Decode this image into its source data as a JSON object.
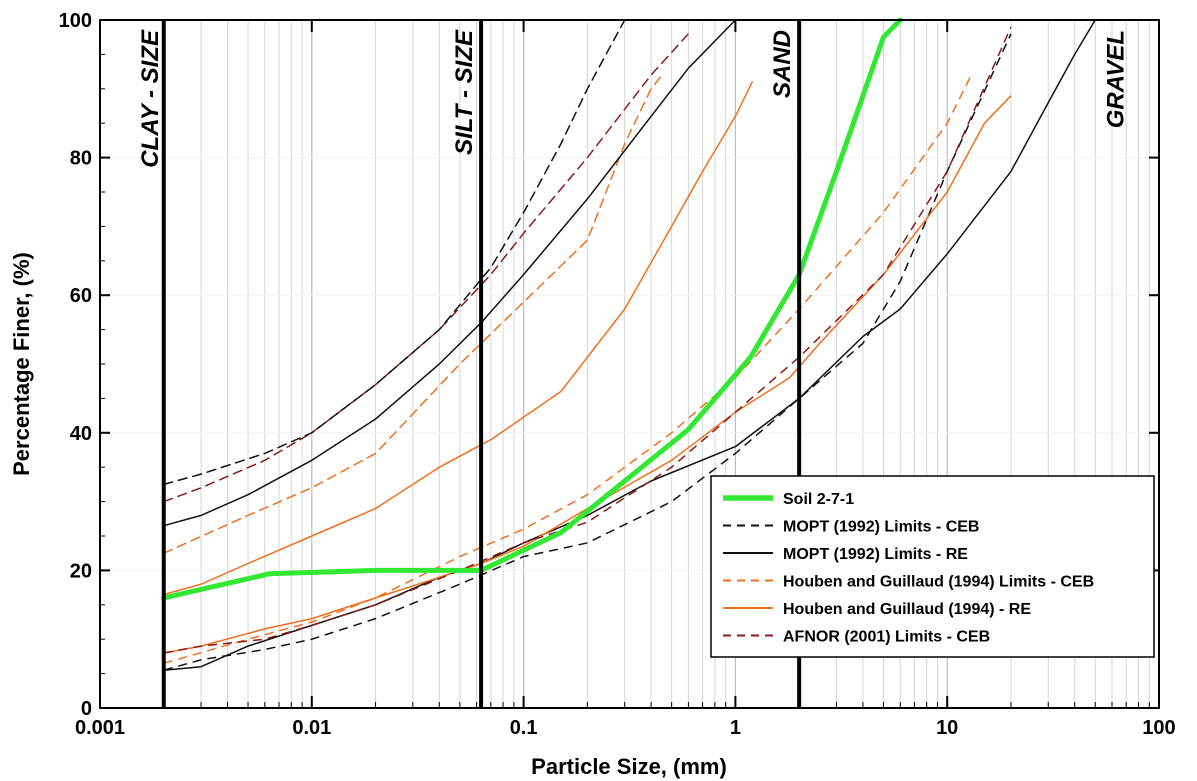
{
  "chart_data": {
    "type": "line",
    "xlabel": "Particle Size, (mm)",
    "ylabel": "Percentage Finer, (%)",
    "xscale": "log",
    "xlim": [
      0.001,
      100
    ],
    "ylim": [
      0,
      100
    ],
    "x_ticks": [
      {
        "value": 0.001,
        "label": "0.001"
      },
      {
        "value": 0.01,
        "label": "0.01"
      },
      {
        "value": 0.1,
        "label": "0.1"
      },
      {
        "value": 1,
        "label": "1"
      },
      {
        "value": 10,
        "label": "10"
      },
      {
        "value": 100,
        "label": "100"
      }
    ],
    "y_ticks": [
      {
        "value": 0,
        "label": "0"
      },
      {
        "value": 20,
        "label": "20"
      },
      {
        "value": 40,
        "label": "40"
      },
      {
        "value": 60,
        "label": "60"
      },
      {
        "value": 80,
        "label": "80"
      },
      {
        "value": 100,
        "label": "100"
      }
    ],
    "grid": "vertical minor log gridlines",
    "legend_position": "bottom-right",
    "boundaries": [
      {
        "x": 0.002,
        "label": "CLAY - SIZE",
        "side": "right"
      },
      {
        "x": 0.063,
        "label": "SILT - SIZE",
        "side": "left"
      },
      {
        "x": 2,
        "label": "SAND",
        "side": "left"
      },
      {
        "x": null,
        "label": "GRAVEL",
        "at": 75,
        "side": "left"
      }
    ],
    "series": [
      {
        "name": "Soil 2-7-1",
        "color": "#33e833",
        "dash": "solid",
        "width": 5,
        "points": [
          [
            0.002,
            16
          ],
          [
            0.0063,
            19.5
          ],
          [
            0.02,
            20
          ],
          [
            0.063,
            20
          ],
          [
            0.15,
            25.5
          ],
          [
            0.3,
            33
          ],
          [
            0.6,
            40.5
          ],
          [
            1.18,
            51
          ],
          [
            2,
            63
          ],
          [
            3,
            78
          ],
          [
            5,
            97.5
          ],
          [
            6,
            100
          ]
        ]
      },
      {
        "name": "MOPT (1992) Limits - CEB",
        "color": "#111111",
        "dash": "dashed",
        "width": 1.5,
        "points": [
          [
            0.002,
            32.5
          ],
          [
            0.003,
            34
          ],
          [
            0.006,
            37
          ],
          [
            0.01,
            40
          ],
          [
            0.02,
            47
          ],
          [
            0.04,
            55
          ],
          [
            0.07,
            64
          ],
          [
            0.1,
            72
          ],
          [
            0.15,
            82
          ],
          [
            0.2,
            90
          ],
          [
            0.3,
            100
          ]
        ]
      },
      {
        "name": "MOPT (1992) Limits - RE",
        "color": "#111111",
        "dash": "solid",
        "width": 1.5,
        "points": [
          [
            0.002,
            26.5
          ],
          [
            0.003,
            28
          ],
          [
            0.005,
            31
          ],
          [
            0.01,
            36
          ],
          [
            0.02,
            42
          ],
          [
            0.04,
            50
          ],
          [
            0.063,
            56
          ],
          [
            0.1,
            63
          ],
          [
            0.2,
            74
          ],
          [
            0.4,
            86
          ],
          [
            0.6,
            93
          ],
          [
            1,
            100
          ]
        ]
      },
      {
        "name": "Houben and Guillaud (1994) Limits - CEB",
        "color": "#f07020",
        "dash": "dashed",
        "width": 1.5,
        "points": [
          [
            0.002,
            22.5
          ],
          [
            0.005,
            28
          ],
          [
            0.01,
            32
          ],
          [
            0.02,
            37
          ],
          [
            0.05,
            50
          ],
          [
            0.1,
            59
          ],
          [
            0.2,
            68
          ],
          [
            0.3,
            82
          ],
          [
            0.4,
            90
          ],
          [
            0.45,
            92
          ]
        ]
      },
      {
        "name": "Houben and Guillaud (1994) - RE",
        "color": "#f07020",
        "dash": "solid",
        "width": 1.5,
        "points": [
          [
            0.002,
            16.5
          ],
          [
            0.003,
            18
          ],
          [
            0.005,
            21
          ],
          [
            0.01,
            25
          ],
          [
            0.02,
            29
          ],
          [
            0.04,
            35
          ],
          [
            0.07,
            39
          ],
          [
            0.15,
            46
          ],
          [
            0.3,
            58
          ],
          [
            0.5,
            70
          ],
          [
            0.7,
            78
          ],
          [
            1,
            86
          ],
          [
            1.2,
            91
          ]
        ]
      },
      {
        "name": "AFNOR (2001) Limits - CEB",
        "color": "#8b1a1a",
        "dash": "dashed",
        "width": 1.5,
        "points": [
          [
            0.002,
            30
          ],
          [
            0.003,
            32
          ],
          [
            0.006,
            36
          ],
          [
            0.01,
            40
          ],
          [
            0.02,
            47
          ],
          [
            0.04,
            55
          ],
          [
            0.07,
            63
          ],
          [
            0.1,
            69
          ],
          [
            0.2,
            80
          ],
          [
            0.4,
            92
          ],
          [
            0.6,
            98
          ]
        ]
      }
    ],
    "unlabeled_lower_series": [
      {
        "color": "#111111",
        "dash": "dashed",
        "width": 1.5,
        "points": [
          [
            0.002,
            5.5
          ],
          [
            0.003,
            7
          ],
          [
            0.006,
            8.5
          ],
          [
            0.01,
            10
          ],
          [
            0.02,
            13
          ],
          [
            0.05,
            18
          ],
          [
            0.1,
            22
          ],
          [
            0.2,
            24
          ],
          [
            0.5,
            30
          ],
          [
            1,
            37
          ],
          [
            2,
            45
          ],
          [
            4,
            53
          ],
          [
            6,
            62
          ],
          [
            10,
            78
          ],
          [
            20,
            98
          ]
        ]
      },
      {
        "color": "#111111",
        "dash": "solid",
        "width": 1.5,
        "points": [
          [
            0.002,
            5.5
          ],
          [
            0.003,
            6
          ],
          [
            0.005,
            9
          ],
          [
            0.01,
            12
          ],
          [
            0.02,
            15
          ],
          [
            0.04,
            19
          ],
          [
            0.063,
            21
          ],
          [
            0.1,
            24
          ],
          [
            0.2,
            28
          ],
          [
            0.4,
            33
          ],
          [
            1,
            38
          ],
          [
            2,
            45
          ],
          [
            4,
            54
          ],
          [
            6,
            58
          ],
          [
            10,
            66
          ],
          [
            20,
            78
          ],
          [
            30,
            88
          ],
          [
            40,
            95
          ],
          [
            50,
            100
          ]
        ]
      },
      {
        "color": "#f07020",
        "dash": "dashed",
        "width": 1.5,
        "points": [
          [
            0.002,
            6.5
          ],
          [
            0.005,
            10
          ],
          [
            0.01,
            12.5
          ],
          [
            0.02,
            16
          ],
          [
            0.05,
            22
          ],
          [
            0.1,
            26
          ],
          [
            0.2,
            31
          ],
          [
            0.5,
            40
          ],
          [
            1,
            48
          ],
          [
            2,
            58
          ],
          [
            5,
            72
          ],
          [
            10,
            85
          ],
          [
            13,
            92
          ]
        ]
      },
      {
        "color": "#f07020",
        "dash": "solid",
        "width": 1.5,
        "points": [
          [
            0.002,
            8
          ],
          [
            0.003,
            9
          ],
          [
            0.006,
            11.5
          ],
          [
            0.01,
            13
          ],
          [
            0.02,
            16
          ],
          [
            0.04,
            19
          ],
          [
            0.063,
            21
          ],
          [
            0.1,
            23.5
          ],
          [
            0.2,
            29
          ],
          [
            0.5,
            36
          ],
          [
            1,
            43
          ],
          [
            1.8,
            48
          ],
          [
            2.5,
            53
          ],
          [
            5,
            63
          ],
          [
            10,
            75
          ],
          [
            15,
            85
          ],
          [
            20,
            89
          ]
        ]
      },
      {
        "color": "#8b1a1a",
        "dash": "dashed",
        "width": 1.5,
        "points": [
          [
            0.002,
            8
          ],
          [
            0.003,
            9
          ],
          [
            0.006,
            10
          ],
          [
            0.01,
            12
          ],
          [
            0.02,
            15
          ],
          [
            0.05,
            20
          ],
          [
            0.1,
            24
          ],
          [
            0.2,
            27
          ],
          [
            0.5,
            35
          ],
          [
            1,
            43
          ],
          [
            2,
            51
          ],
          [
            5,
            63
          ],
          [
            10,
            78
          ],
          [
            20,
            99
          ]
        ]
      }
    ]
  }
}
